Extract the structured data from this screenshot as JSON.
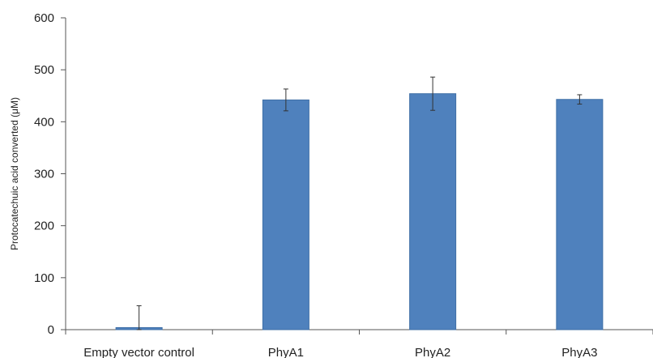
{
  "chart_data": {
    "type": "bar",
    "categories": [
      "Empty vector control",
      "PhyA1",
      "PhyA2",
      "PhyA3"
    ],
    "values": [
      4,
      442,
      454,
      443
    ],
    "error_bars": [
      42,
      21,
      32,
      9
    ],
    "title": "",
    "xlabel": "",
    "ylabel": "Protocatechuic acid converted (μM)",
    "ylim": [
      0,
      600
    ],
    "yticks": [
      0,
      100,
      200,
      300,
      400,
      500,
      600
    ],
    "grid": false,
    "legend": "none",
    "colors": {
      "bar": "#4f81bd",
      "bar_edge": "#3f6fa6",
      "axis": "#555555",
      "error": "#333333"
    }
  }
}
